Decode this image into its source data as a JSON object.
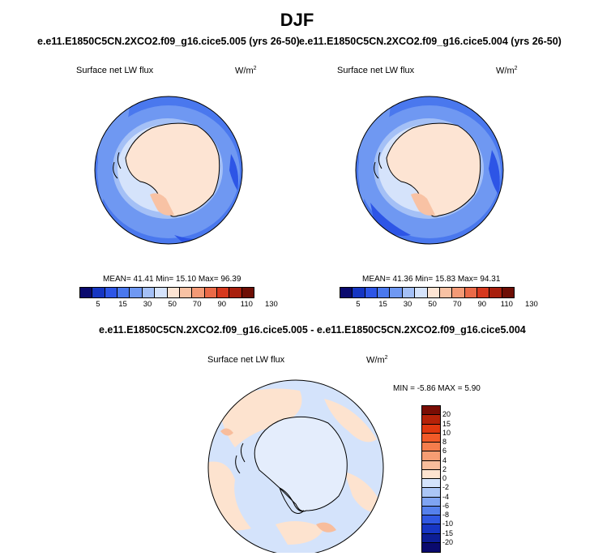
{
  "figure": {
    "season": "DJF",
    "case_a": "e.e11.E1850C5CN.2XCO2.f09_g16.cice5.005 (yrs 26-50)",
    "case_b": "e.e11.E1850C5CN.2XCO2.f09_g16.cice5.004 (yrs 26-50)",
    "diff_title": "e.e11.E1850C5CN.2XCO2.f09_g16.cice5.005 - e.e11.E1850C5CN.2XCO2.f09_g16.cice5.004"
  },
  "panels": {
    "left": {
      "variable": "Surface net LW flux",
      "units_base": "W/m",
      "units_exp": "2",
      "stats": "MEAN= 41.41  Min= 15.10  Max= 96.39",
      "mean": 41.41,
      "min": 15.1,
      "max": 96.39
    },
    "right": {
      "variable": "Surface net LW flux",
      "units_base": "W/m",
      "units_exp": "2",
      "stats": "MEAN= 41.36  Min= 15.83  Max= 94.31",
      "mean": 41.36,
      "min": 15.83,
      "max": 94.31
    },
    "diff": {
      "variable": "Surface net LW flux",
      "units_base": "W/m",
      "units_exp": "2",
      "stats": "MIN =  -5.86 MAX =   5.90",
      "min": -5.86,
      "max": 5.9
    }
  },
  "colorbars": {
    "abs_ticks": [
      "5",
      "15",
      "30",
      "50",
      "70",
      "90",
      "110",
      "130"
    ],
    "abs_colors": [
      "#0a0a6e",
      "#1535c2",
      "#2d55e6",
      "#4a78ee",
      "#6f98f2",
      "#a4c0f6",
      "#d5e3fb",
      "#fde4d3",
      "#f8c2a4",
      "#f39a76",
      "#ea6a48",
      "#d6381e",
      "#a81f0d",
      "#6e0e05"
    ],
    "diff_ticks": [
      "20",
      "15",
      "10",
      "8",
      "6",
      "4",
      "2",
      "0",
      "-2",
      "-4",
      "-6",
      "-8",
      "-10",
      "-15",
      "-20"
    ],
    "diff_colors": [
      "#7a0d04",
      "#b52208",
      "#e0380f",
      "#f25a28",
      "#f57d4c",
      "#f69d73",
      "#f8bd9c",
      "#fde3cf",
      "#d4e3fb",
      "#abc6f6",
      "#7fa4f2",
      "#5580ec",
      "#3058e2",
      "#1736c4",
      "#0d1e96",
      "#0a0a6e"
    ]
  },
  "icons": [
    "polar-map-icon"
  ]
}
